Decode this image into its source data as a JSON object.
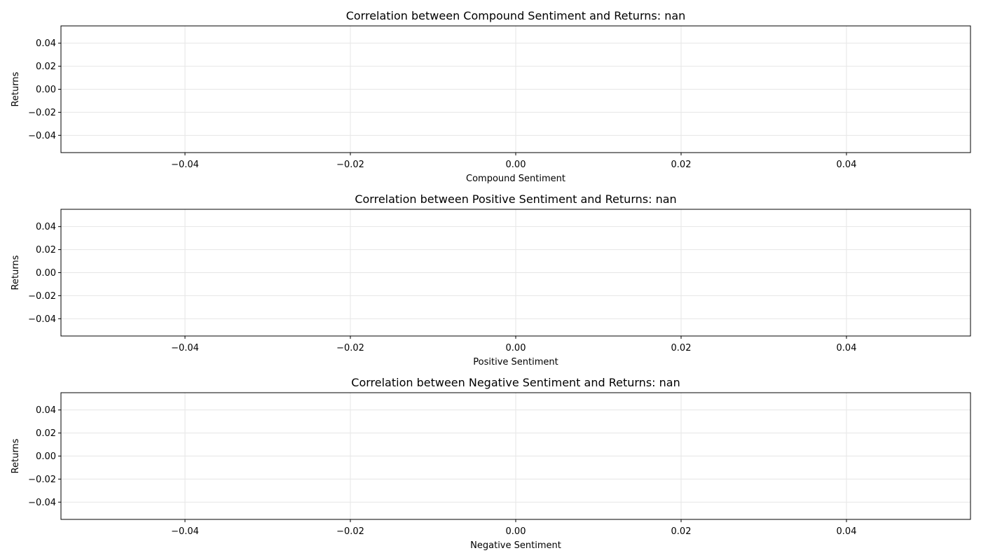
{
  "chart_data": [
    {
      "type": "scatter",
      "title": "Correlation between Compound Sentiment and Returns: nan",
      "xlabel": "Compound Sentiment",
      "ylabel": "Returns",
      "x": [],
      "y": [],
      "xlim": [
        -0.055,
        0.055
      ],
      "ylim": [
        -0.055,
        0.055
      ],
      "xticks": [
        -0.04,
        -0.02,
        0.0,
        0.02,
        0.04
      ],
      "xtick_labels": [
        "−0.04",
        "−0.02",
        "0.00",
        "0.02",
        "0.04"
      ],
      "yticks": [
        0.04,
        0.02,
        0.0,
        -0.02,
        -0.04
      ],
      "ytick_labels": [
        "0.04",
        "0.02",
        "0.00",
        "−0.02",
        "−0.04"
      ],
      "grid": true
    },
    {
      "type": "scatter",
      "title": "Correlation between Positive Sentiment and Returns: nan",
      "xlabel": "Positive Sentiment",
      "ylabel": "Returns",
      "x": [],
      "y": [],
      "xlim": [
        -0.055,
        0.055
      ],
      "ylim": [
        -0.055,
        0.055
      ],
      "xticks": [
        -0.04,
        -0.02,
        0.0,
        0.02,
        0.04
      ],
      "xtick_labels": [
        "−0.04",
        "−0.02",
        "0.00",
        "0.02",
        "0.04"
      ],
      "yticks": [
        0.04,
        0.02,
        0.0,
        -0.02,
        -0.04
      ],
      "ytick_labels": [
        "0.04",
        "0.02",
        "0.00",
        "−0.02",
        "−0.04"
      ],
      "grid": true
    },
    {
      "type": "scatter",
      "title": "Correlation between Negative Sentiment and Returns: nan",
      "xlabel": "Negative Sentiment",
      "ylabel": "Returns",
      "x": [],
      "y": [],
      "xlim": [
        -0.055,
        0.055
      ],
      "ylim": [
        -0.055,
        0.055
      ],
      "xticks": [
        -0.04,
        -0.02,
        0.0,
        0.02,
        0.04
      ],
      "xtick_labels": [
        "−0.04",
        "−0.02",
        "0.00",
        "0.02",
        "0.04"
      ],
      "yticks": [
        0.04,
        0.02,
        0.0,
        -0.02,
        -0.04
      ],
      "ytick_labels": [
        "0.04",
        "0.02",
        "0.00",
        "−0.02",
        "−0.04"
      ],
      "grid": true
    }
  ],
  "colors": {
    "axes_frame": "#000000",
    "grid": "#e6e6e6",
    "background": "#ffffff"
  }
}
